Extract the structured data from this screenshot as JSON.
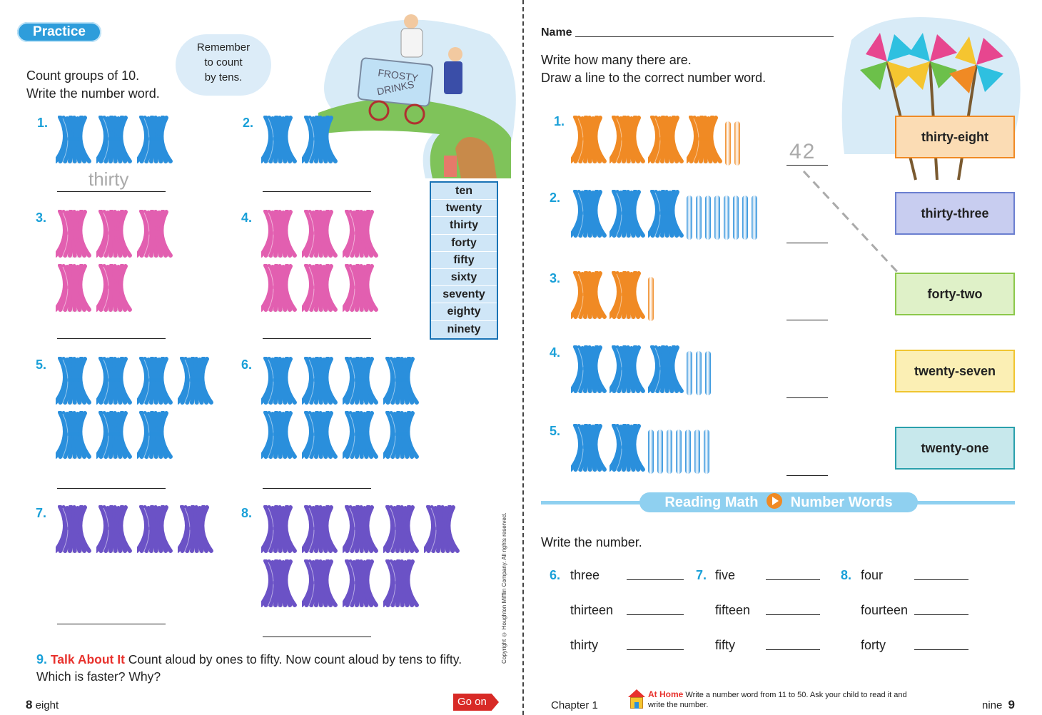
{
  "left": {
    "badge": "Practice",
    "cloud": [
      "Remember",
      "to count",
      "by tens."
    ],
    "instructions": [
      "Count groups of 10.",
      "Write the number word."
    ],
    "cart_sign": [
      "FROSTY",
      "DRINKS"
    ],
    "word_bank": [
      "ten",
      "twenty",
      "thirty",
      "forty",
      "fifty",
      "sixty",
      "seventy",
      "eighty",
      "ninety"
    ],
    "problems": [
      {
        "num": "1.",
        "bundles": 3,
        "color": "#2a8fdc",
        "answer": "thirty"
      },
      {
        "num": "2.",
        "bundles": 2,
        "color": "#2a8fdc",
        "answer": ""
      },
      {
        "num": "3.",
        "bundles": 5,
        "color": "#e25fb0",
        "answer": ""
      },
      {
        "num": "4.",
        "bundles": 6,
        "color": "#e25fb0",
        "answer": ""
      },
      {
        "num": "5.",
        "bundles": 7,
        "color": "#2a8fdc",
        "answer": ""
      },
      {
        "num": "6.",
        "bundles": 8,
        "color": "#2a8fdc",
        "answer": ""
      },
      {
        "num": "7.",
        "bundles": 4,
        "color": "#6b52c6",
        "answer": ""
      },
      {
        "num": "8.",
        "bundles": 9,
        "color": "#6b52c6",
        "answer": ""
      }
    ],
    "talk": {
      "num": "9.",
      "label": "Talk About It",
      "text": "Count aloud by ones to fifty. Now count aloud by tens to fifty. Which is faster? Why?"
    },
    "page_num": "8",
    "page_word": "eight",
    "go_on": "Go on",
    "copyright": "Copyright © Houghton Mifflin Company. All rights reserved."
  },
  "right": {
    "name_label": "Name",
    "instructions": [
      "Write how many there are.",
      "Draw a line to the correct number word."
    ],
    "problems": [
      {
        "num": "1.",
        "tens": 4,
        "ones": 2,
        "color": "#f08a24",
        "answer": "42"
      },
      {
        "num": "2.",
        "tens": 3,
        "ones": 8,
        "color": "#2a8fdc",
        "answer": ""
      },
      {
        "num": "3.",
        "tens": 2,
        "ones": 1,
        "color": "#f08a24",
        "answer": ""
      },
      {
        "num": "4.",
        "tens": 3,
        "ones": 3,
        "color": "#2a8fdc",
        "answer": ""
      },
      {
        "num": "5.",
        "tens": 2,
        "ones": 7,
        "color": "#2a8fdc",
        "answer": ""
      }
    ],
    "word_boxes": [
      {
        "label": "thirty-eight",
        "bg": "#fbdcb4",
        "border": "#f08a24"
      },
      {
        "label": "thirty-three",
        "bg": "#c8cdf0",
        "border": "#6b7fd0"
      },
      {
        "label": "forty-two",
        "bg": "#dff1c8",
        "border": "#8cc84b"
      },
      {
        "label": "twenty-seven",
        "bg": "#fbefb4",
        "border": "#f0c530"
      },
      {
        "label": "twenty-one",
        "bg": "#c7e8ec",
        "border": "#2aa0ac"
      }
    ],
    "reading_math": {
      "left": "Reading Math",
      "right": "Number Words"
    },
    "write_number": "Write the number.",
    "word_problems": [
      {
        "num": "6.",
        "words": [
          "three",
          "thirteen",
          "thirty"
        ]
      },
      {
        "num": "7.",
        "words": [
          "five",
          "fifteen",
          "fifty"
        ]
      },
      {
        "num": "8.",
        "words": [
          "four",
          "fourteen",
          "forty"
        ]
      }
    ],
    "chapter": "Chapter 1",
    "at_home_label": "At Home",
    "at_home_text": "Write a number word from 11 to 50. Ask your child to read it and write the number.",
    "page_word": "nine",
    "page_num": "9"
  }
}
